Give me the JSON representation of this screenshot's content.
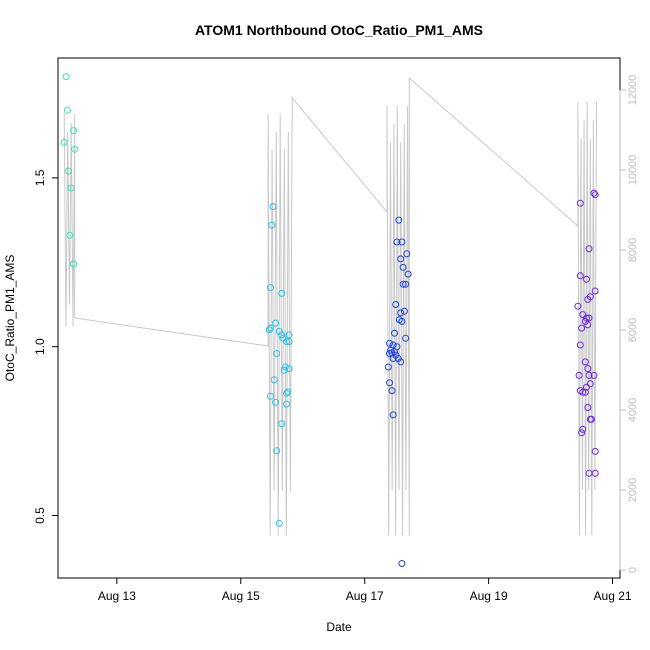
{
  "chart_data": {
    "type": "scatter",
    "title": "ATOM1 Northbound OtoC_Ratio_PM1_AMS",
    "xlabel": "Date",
    "ylabel": "OtoC_Ratio_PM1_AMS",
    "x_ticks": [
      "Aug 13",
      "Aug 15",
      "Aug 17",
      "Aug 19",
      "Aug 21"
    ],
    "x_tick_days": [
      13,
      15,
      17,
      19,
      21
    ],
    "xlim": [
      12.05,
      21.12
    ],
    "ylim": [
      0.315,
      1.855
    ],
    "y_ticks": [
      0.5,
      1.0,
      1.5
    ],
    "y_tick_labels": [
      "0.5",
      "1.0",
      "1.5"
    ],
    "y2lim": [
      -200,
      12800
    ],
    "y2_ticks": [
      0,
      2000,
      4000,
      6000,
      8000,
      10000,
      12000
    ],
    "y2_tick_labels": [
      "0",
      "2000",
      "4000",
      "6000",
      "8000",
      "10000",
      "12000"
    ],
    "grid": false,
    "series": [
      {
        "color": "#2fe6b8",
        "points": [
          [
            12.18,
            1.8
          ],
          [
            12.2,
            1.7
          ],
          [
            12.15,
            1.605
          ],
          [
            12.22,
            1.52
          ],
          [
            12.26,
            1.47
          ],
          [
            12.3,
            1.64
          ],
          [
            12.32,
            1.585
          ],
          [
            12.24,
            1.33
          ],
          [
            12.3,
            1.245
          ]
        ]
      },
      {
        "color": "#2bbfe6",
        "points": [
          [
            15.52,
            1.415
          ],
          [
            15.5,
            1.36
          ],
          [
            15.48,
            1.175
          ],
          [
            15.66,
            1.158
          ],
          [
            15.56,
            1.07
          ],
          [
            15.46,
            1.05
          ],
          [
            15.48,
            1.055
          ],
          [
            15.62,
            1.045
          ],
          [
            15.66,
            1.035
          ],
          [
            15.78,
            1.035
          ],
          [
            15.68,
            1.025
          ],
          [
            15.74,
            1.015
          ],
          [
            15.78,
            1.015
          ],
          [
            15.58,
            0.98
          ],
          [
            15.72,
            0.94
          ],
          [
            15.78,
            0.935
          ],
          [
            15.7,
            0.93
          ],
          [
            15.54,
            0.902
          ],
          [
            15.76,
            0.866
          ],
          [
            15.74,
            0.862
          ],
          [
            15.48,
            0.853
          ],
          [
            15.56,
            0.835
          ],
          [
            15.74,
            0.83
          ],
          [
            15.66,
            0.772
          ],
          [
            15.58,
            0.692
          ],
          [
            15.62,
            0.477
          ]
        ]
      },
      {
        "color": "#1b44e0",
        "points": [
          [
            17.55,
            1.375
          ],
          [
            17.52,
            1.31
          ],
          [
            17.6,
            1.31
          ],
          [
            17.68,
            1.275
          ],
          [
            17.58,
            1.26
          ],
          [
            17.62,
            1.235
          ],
          [
            17.7,
            1.215
          ],
          [
            17.62,
            1.185
          ],
          [
            17.66,
            1.185
          ],
          [
            17.5,
            1.125
          ],
          [
            17.58,
            1.1
          ],
          [
            17.64,
            1.105
          ],
          [
            17.56,
            1.08
          ],
          [
            17.6,
            1.075
          ],
          [
            17.48,
            1.04
          ],
          [
            17.66,
            1.025
          ],
          [
            17.4,
            1.01
          ],
          [
            17.46,
            1.005
          ],
          [
            17.52,
            1.0
          ],
          [
            17.42,
            0.99
          ],
          [
            17.48,
            0.985
          ],
          [
            17.4,
            0.98
          ],
          [
            17.44,
            0.982
          ],
          [
            17.5,
            0.975
          ],
          [
            17.54,
            0.965
          ],
          [
            17.46,
            0.965
          ],
          [
            17.58,
            0.955
          ],
          [
            17.38,
            0.94
          ],
          [
            17.4,
            0.893
          ],
          [
            17.44,
            0.87
          ],
          [
            17.46,
            0.798
          ],
          [
            17.6,
            0.358
          ]
        ]
      },
      {
        "color": "#6b2be0",
        "points": [
          [
            20.48,
            1.425
          ],
          [
            20.48,
            1.21
          ],
          [
            20.62,
            1.29
          ],
          [
            20.58,
            1.2
          ],
          [
            20.64,
            1.148
          ],
          [
            20.6,
            1.14
          ],
          [
            20.72,
            1.165
          ],
          [
            20.7,
            1.455
          ],
          [
            20.72,
            1.45
          ],
          [
            20.44,
            1.12
          ],
          [
            20.52,
            1.095
          ],
          [
            20.58,
            1.085
          ],
          [
            20.62,
            1.085
          ],
          [
            20.56,
            1.075
          ],
          [
            20.6,
            1.065
          ],
          [
            20.5,
            1.055
          ],
          [
            20.48,
            1.005
          ],
          [
            20.56,
            0.955
          ],
          [
            20.6,
            0.935
          ],
          [
            20.62,
            0.915
          ],
          [
            20.46,
            0.915
          ],
          [
            20.7,
            0.915
          ],
          [
            20.64,
            0.89
          ],
          [
            20.58,
            0.88
          ],
          [
            20.56,
            0.865
          ],
          [
            20.52,
            0.865
          ],
          [
            20.48,
            0.87
          ],
          [
            20.6,
            0.82
          ],
          [
            20.52,
            0.755
          ],
          [
            20.5,
            0.745
          ],
          [
            20.64,
            0.785
          ],
          [
            20.66,
            0.785
          ],
          [
            20.72,
            0.69
          ],
          [
            20.62,
            0.625
          ],
          [
            20.72,
            0.625
          ]
        ]
      }
    ],
    "overlay_line": {
      "color": "#c8c8c8",
      "axis": "right",
      "segments": [
        {
          "x_range": [
            12.15,
            12.32
          ],
          "oscillation": [
            5800,
            11400
          ],
          "count": 7
        },
        {
          "x_range": [
            15.44,
            15.8
          ],
          "oscillation": [
            300,
            11400
          ],
          "count": 12
        },
        {
          "x_range": [
            17.36,
            17.72
          ],
          "oscillation": [
            300,
            11600
          ],
          "count": 14
        },
        {
          "x_range": [
            20.44,
            20.74
          ],
          "oscillation": [
            300,
            11700
          ],
          "count": 13
        }
      ],
      "connectors": [
        [
          12.32,
          6300
        ],
        [
          15.44,
          5600
        ],
        [
          15.83,
          11800
        ],
        [
          17.36,
          8950
        ],
        [
          17.72,
          12300
        ],
        [
          20.44,
          8600
        ]
      ]
    }
  }
}
